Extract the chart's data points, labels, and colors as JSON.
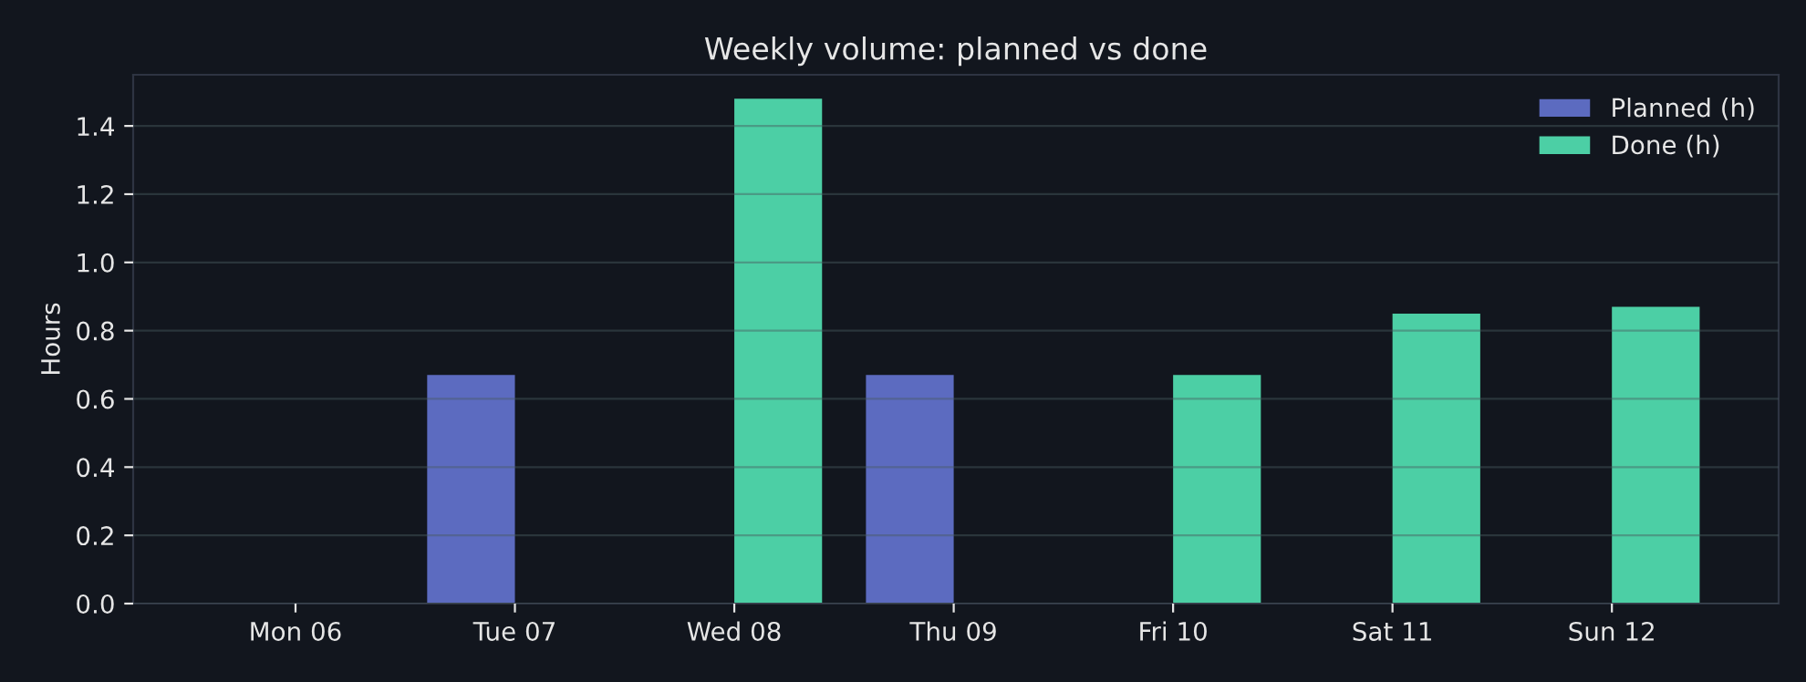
{
  "chart_data": {
    "type": "bar",
    "title": "Weekly volume: planned vs done",
    "ylabel": "Hours",
    "categories": [
      "Mon 06",
      "Tue 07",
      "Wed 08",
      "Thu 09",
      "Fri 10",
      "Sat 11",
      "Sun 12"
    ],
    "series": [
      {
        "name": "Planned (h)",
        "color": "#5c6bc0",
        "values": [
          0,
          0.67,
          0,
          0.67,
          0,
          0,
          0
        ]
      },
      {
        "name": "Done (h)",
        "color": "#4ccfa5",
        "values": [
          0,
          0,
          1.48,
          0,
          0.67,
          0.85,
          0.87
        ]
      }
    ],
    "ylim": [
      0,
      1.55
    ],
    "yticks": [
      {
        "value": 0,
        "label": "0.0"
      },
      0.2,
      0.4,
      0.6,
      0.8,
      {
        "value": 1,
        "label": "1.0"
      },
      1.2,
      1.4
    ],
    "grid": "y",
    "legend": "top right"
  }
}
